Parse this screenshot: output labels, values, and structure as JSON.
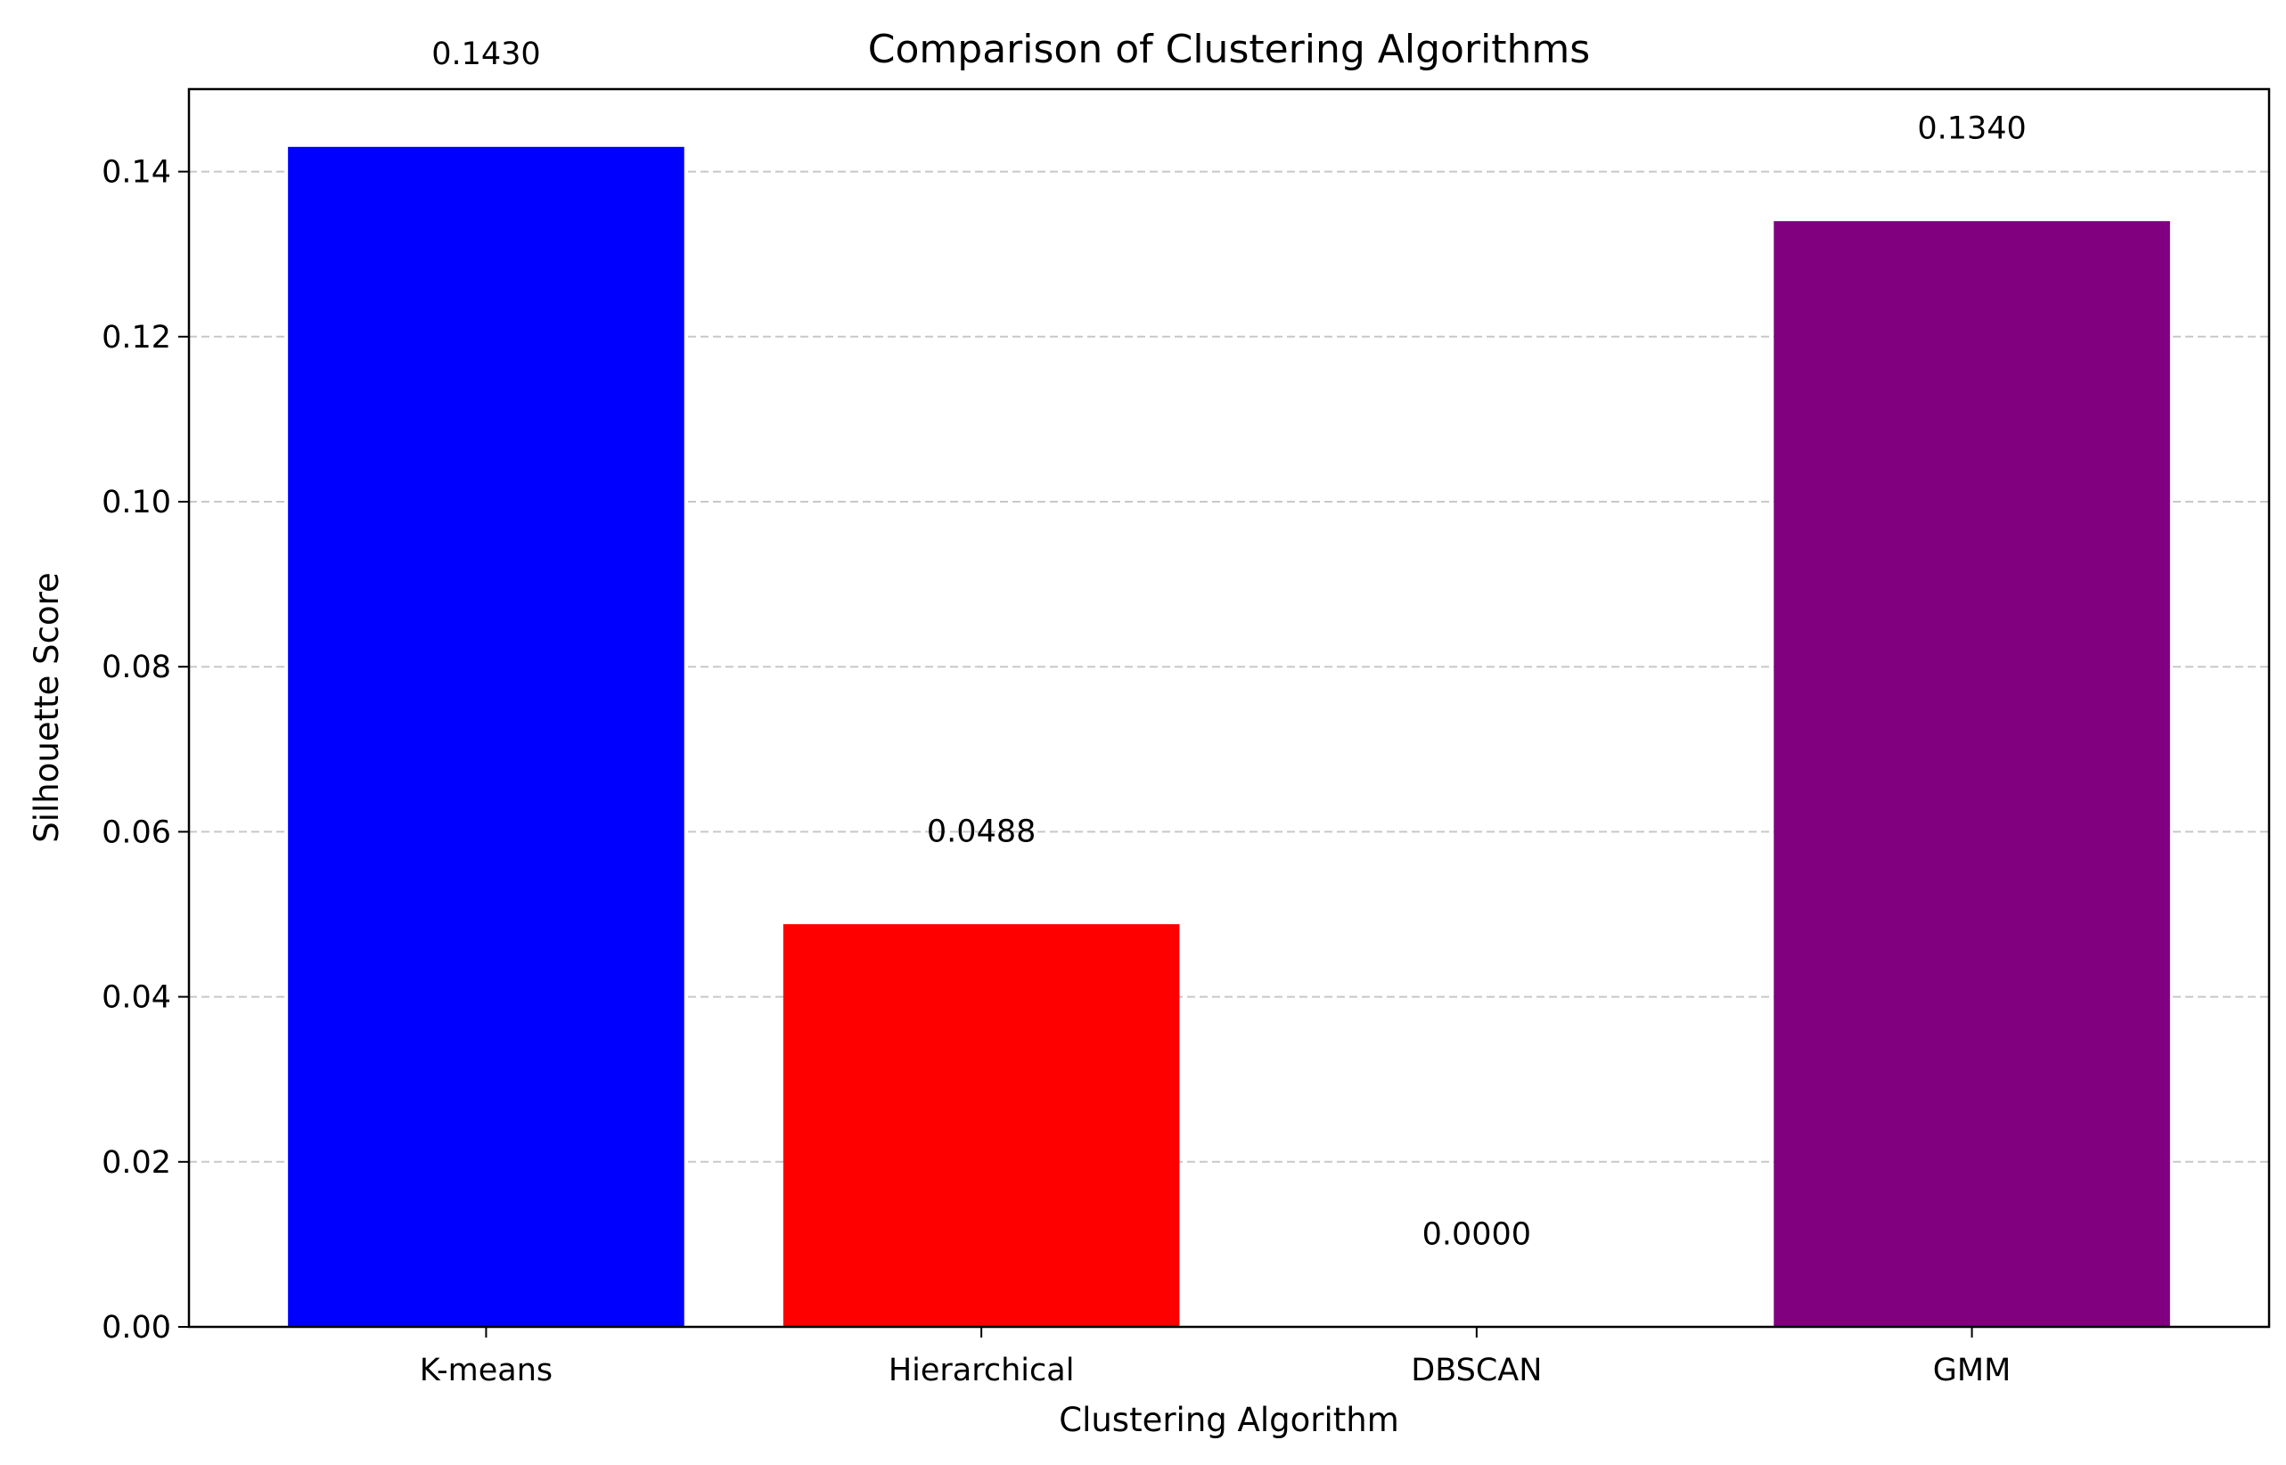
{
  "chart_data": {
    "type": "bar",
    "title": "Comparison of Clustering Algorithms",
    "xlabel": "Clustering Algorithm",
    "ylabel": "Silhouette Score",
    "categories": [
      "K-means",
      "Hierarchical",
      "DBSCAN",
      "GMM"
    ],
    "values": [
      0.143,
      0.0488,
      0.0,
      0.134
    ],
    "value_labels": [
      "0.1430",
      "0.0488",
      "0.0000",
      "0.1340"
    ],
    "colors": [
      "#0000ff",
      "#ff0000",
      "#ffffff",
      "#800080"
    ],
    "ylim": [
      0,
      0.15
    ],
    "yticks": [
      0.0,
      0.02,
      0.04,
      0.06,
      0.08,
      0.1,
      0.12,
      0.14
    ],
    "ytick_labels": [
      "0.00",
      "0.02",
      "0.04",
      "0.06",
      "0.08",
      "0.10",
      "0.12",
      "0.14"
    ],
    "label_offset": 0.01,
    "grid": {
      "axis": "y",
      "style": "dashed",
      "color": "#c8c8c8"
    }
  }
}
